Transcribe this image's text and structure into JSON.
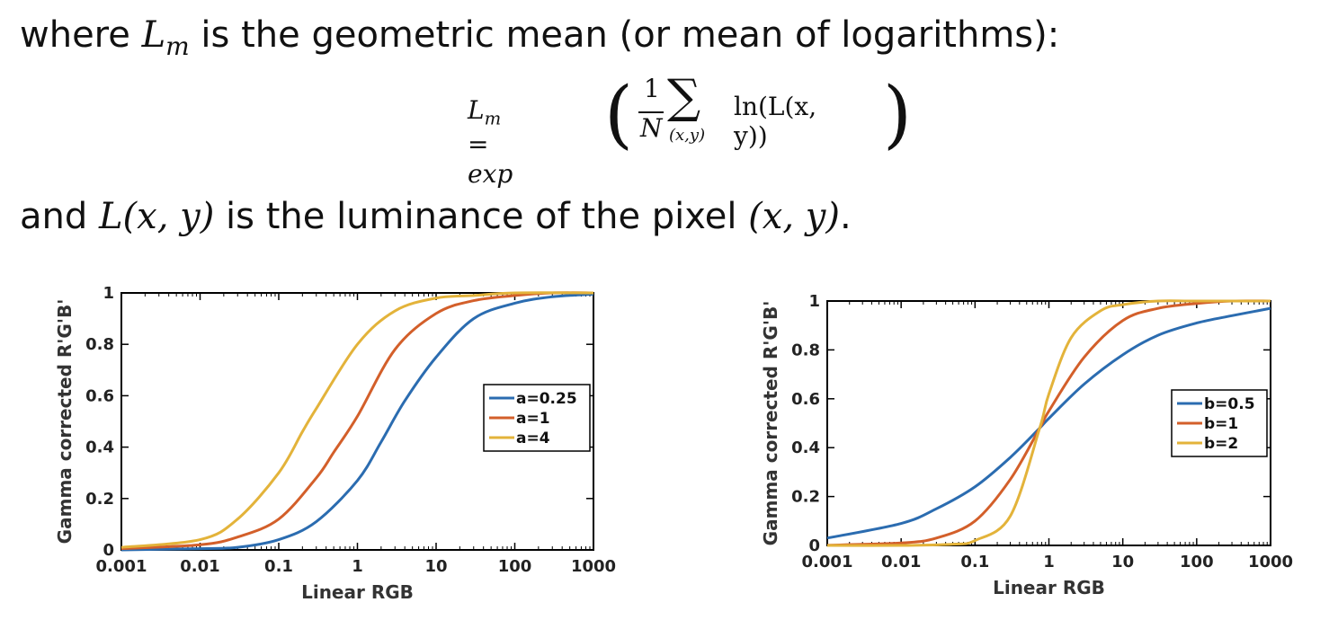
{
  "text": {
    "line1_before": "where ",
    "line1_math": "Lm",
    "line1_after": " is the geometric mean (or mean of logarithms):",
    "eq_lhs": "Lm = exp",
    "eq_frac_num": "1",
    "eq_frac_den": "N",
    "eq_sum": "∑",
    "eq_sum_sub": "(x,y)",
    "eq_term": "ln(L(x, y))",
    "line2_before": "and ",
    "line2_math1": "L(x, y)",
    "line2_mid": " is the luminance of the pixel ",
    "line2_math2": "(x, y)",
    "line2_after": "."
  },
  "chart_data": [
    {
      "type": "line",
      "xlabel": "Linear RGB",
      "ylabel": "Gamma corrected R'G'B'",
      "xscale": "log",
      "xlim": [
        0.001,
        1000
      ],
      "ylim": [
        0,
        1
      ],
      "xticks": [
        "0.001",
        "0.01",
        "0.1",
        "1",
        "10",
        "100",
        "1000"
      ],
      "yticks": [
        "0",
        "0.2",
        "0.4",
        "0.6",
        "0.8",
        "1"
      ],
      "legend_position": "right",
      "series": [
        {
          "name": "a=0.25",
          "color": "#2b6cb0",
          "x": [
            0.001,
            0.01,
            0.03,
            0.1,
            0.3,
            1,
            2,
            4,
            10,
            30,
            100,
            300,
            1000
          ],
          "y": [
            0.0,
            0.005,
            0.01,
            0.04,
            0.11,
            0.27,
            0.42,
            0.58,
            0.75,
            0.9,
            0.96,
            0.985,
            0.995
          ]
        },
        {
          "name": "a=1",
          "color": "#d35f2a",
          "x": [
            0.001,
            0.01,
            0.03,
            0.1,
            0.3,
            0.5,
            1,
            3,
            10,
            30,
            100,
            300,
            1000
          ],
          "y": [
            0.005,
            0.02,
            0.05,
            0.12,
            0.28,
            0.38,
            0.52,
            0.78,
            0.92,
            0.97,
            0.99,
            1.0,
            1.0
          ]
        },
        {
          "name": "a=4",
          "color": "#e3b33a",
          "x": [
            0.001,
            0.01,
            0.03,
            0.1,
            0.2,
            0.3,
            1,
            3,
            10,
            30,
            100,
            1000
          ],
          "y": [
            0.01,
            0.04,
            0.12,
            0.3,
            0.46,
            0.55,
            0.8,
            0.93,
            0.98,
            0.99,
            1.0,
            1.0
          ]
        }
      ]
    },
    {
      "type": "line",
      "xlabel": "Linear RGB",
      "ylabel": "Gamma corrected R'G'B'",
      "xscale": "log",
      "xlim": [
        0.001,
        1000
      ],
      "ylim": [
        0,
        1
      ],
      "xticks": [
        "0.001",
        "0.01",
        "0.1",
        "1",
        "10",
        "100",
        "1000"
      ],
      "yticks": [
        "0",
        "0.2",
        "0.4",
        "0.6",
        "0.8",
        "1"
      ],
      "legend_position": "right",
      "series": [
        {
          "name": "b=0.5",
          "color": "#2b6cb0",
          "x": [
            0.001,
            0.01,
            0.03,
            0.1,
            0.3,
            0.75,
            1,
            3,
            10,
            30,
            100,
            300,
            1000
          ],
          "y": [
            0.03,
            0.09,
            0.15,
            0.24,
            0.36,
            0.48,
            0.52,
            0.66,
            0.78,
            0.86,
            0.91,
            0.94,
            0.97
          ]
        },
        {
          "name": "b=1",
          "color": "#d35f2a",
          "x": [
            0.001,
            0.01,
            0.03,
            0.1,
            0.3,
            0.75,
            1,
            3,
            10,
            30,
            100,
            300,
            1000
          ],
          "y": [
            0.001,
            0.01,
            0.03,
            0.1,
            0.27,
            0.48,
            0.55,
            0.77,
            0.92,
            0.97,
            0.99,
            1.0,
            1.0
          ]
        },
        {
          "name": "b=2",
          "color": "#e3b33a",
          "x": [
            0.001,
            0.01,
            0.05,
            0.1,
            0.3,
            0.75,
            1,
            2,
            5,
            10,
            30,
            100,
            1000
          ],
          "y": [
            0.0,
            0.0,
            0.005,
            0.02,
            0.12,
            0.48,
            0.62,
            0.85,
            0.96,
            0.985,
            1.0,
            1.0,
            1.0
          ]
        }
      ]
    }
  ]
}
